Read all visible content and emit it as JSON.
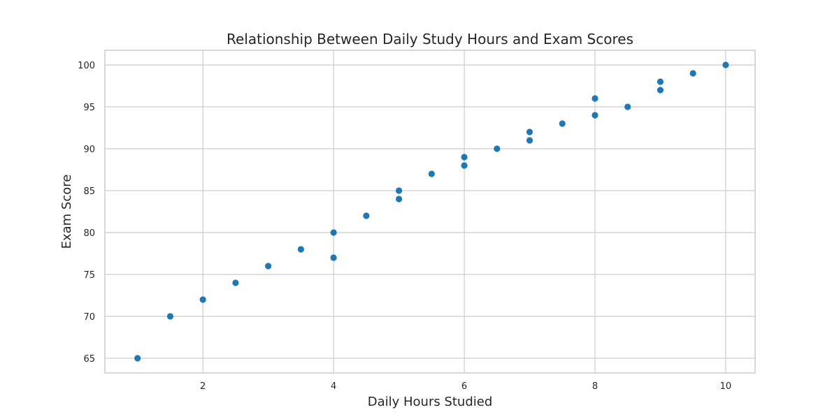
{
  "chart_data": {
    "type": "scatter",
    "title": "Relationship Between Daily Study Hours and Exam Scores",
    "xlabel": "Daily Hours Studied",
    "ylabel": "Exam Score",
    "xlim": [
      0.5,
      10.45
    ],
    "ylim": [
      63.25,
      101.75
    ],
    "xticks": [
      2,
      4,
      6,
      8,
      10
    ],
    "xtick_labels": [
      "2",
      "4",
      "6",
      "8",
      "10"
    ],
    "yticks": [
      65,
      70,
      75,
      80,
      85,
      90,
      95,
      100
    ],
    "ytick_labels": [
      "65",
      "70",
      "75",
      "80",
      "85",
      "90",
      "95",
      "100"
    ],
    "grid": true,
    "marker_color": "#1f77b4",
    "grid_color": "#cccccc",
    "text_color": "#262626",
    "points": [
      {
        "x": 1,
        "y": 65
      },
      {
        "x": 1.5,
        "y": 70
      },
      {
        "x": 2,
        "y": 72
      },
      {
        "x": 2.5,
        "y": 74
      },
      {
        "x": 3,
        "y": 76
      },
      {
        "x": 3.5,
        "y": 78
      },
      {
        "x": 4,
        "y": 77
      },
      {
        "x": 4,
        "y": 80
      },
      {
        "x": 4.5,
        "y": 82
      },
      {
        "x": 5,
        "y": 84
      },
      {
        "x": 5,
        "y": 85
      },
      {
        "x": 5.5,
        "y": 87
      },
      {
        "x": 6,
        "y": 88
      },
      {
        "x": 6,
        "y": 89
      },
      {
        "x": 6.5,
        "y": 90
      },
      {
        "x": 7,
        "y": 91
      },
      {
        "x": 7,
        "y": 92
      },
      {
        "x": 7.5,
        "y": 93
      },
      {
        "x": 8,
        "y": 94
      },
      {
        "x": 8,
        "y": 96
      },
      {
        "x": 8.5,
        "y": 95
      },
      {
        "x": 9,
        "y": 97
      },
      {
        "x": 9,
        "y": 98
      },
      {
        "x": 9.5,
        "y": 99
      },
      {
        "x": 10,
        "y": 100
      }
    ]
  }
}
